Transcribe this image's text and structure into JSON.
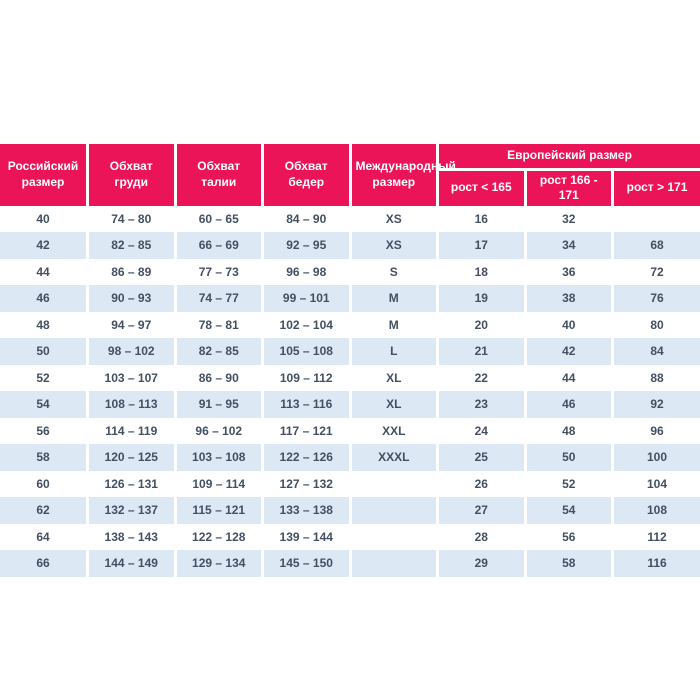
{
  "theme": {
    "accent_color": "#ec1459",
    "stripe_color": "#dde8f5",
    "body_text_color": "#425062",
    "header_text_color": "#ffffff",
    "page_background": "#ffffff"
  },
  "chart_data": {
    "type": "table",
    "title": "",
    "header": {
      "main": [
        "Российский размер",
        "Обхват груди",
        "Обхват талии",
        "Обхват бедер",
        "Международный размер"
      ],
      "group": "Европейский размер",
      "sub": [
        "рост < 165",
        "рост 166 - 171",
        "рост > 171"
      ]
    },
    "columns": [
      "Российский размер",
      "Обхват груди",
      "Обхват талии",
      "Обхват бедер",
      "Международный размер",
      "рост < 165",
      "рост 166 - 171",
      "рост > 171"
    ],
    "rows": [
      [
        "40",
        "74 – 80",
        "60 – 65",
        "84 – 90",
        "XS",
        "16",
        "32",
        ""
      ],
      [
        "42",
        "82 – 85",
        "66 – 69",
        "92 – 95",
        "XS",
        "17",
        "34",
        "68"
      ],
      [
        "44",
        "86 – 89",
        "77 – 73",
        "96 – 98",
        "S",
        "18",
        "36",
        "72"
      ],
      [
        "46",
        "90 – 93",
        "74 – 77",
        "99 – 101",
        "M",
        "19",
        "38",
        "76"
      ],
      [
        "48",
        "94 – 97",
        "78 – 81",
        "102 – 104",
        "M",
        "20",
        "40",
        "80"
      ],
      [
        "50",
        "98 – 102",
        "82 – 85",
        "105 – 108",
        "L",
        "21",
        "42",
        "84"
      ],
      [
        "52",
        "103 – 107",
        "86 – 90",
        "109 – 112",
        "XL",
        "22",
        "44",
        "88"
      ],
      [
        "54",
        "108 – 113",
        "91 – 95",
        "113 – 116",
        "XL",
        "23",
        "46",
        "92"
      ],
      [
        "56",
        "114 – 119",
        "96 – 102",
        "117 – 121",
        "XXL",
        "24",
        "48",
        "96"
      ],
      [
        "58",
        "120 – 125",
        "103 – 108",
        "122 – 126",
        "XXXL",
        "25",
        "50",
        "100"
      ],
      [
        "60",
        "126 – 131",
        "109 – 114",
        "127 – 132",
        "",
        "26",
        "52",
        "104"
      ],
      [
        "62",
        "132 – 137",
        "115 – 121",
        "133 – 138",
        "",
        "27",
        "54",
        "108"
      ],
      [
        "64",
        "138 – 143",
        "122 – 128",
        "139 – 144",
        "",
        "28",
        "56",
        "112"
      ],
      [
        "66",
        "144 – 149",
        "129 – 134",
        "145 – 150",
        "",
        "29",
        "58",
        "116"
      ]
    ]
  }
}
